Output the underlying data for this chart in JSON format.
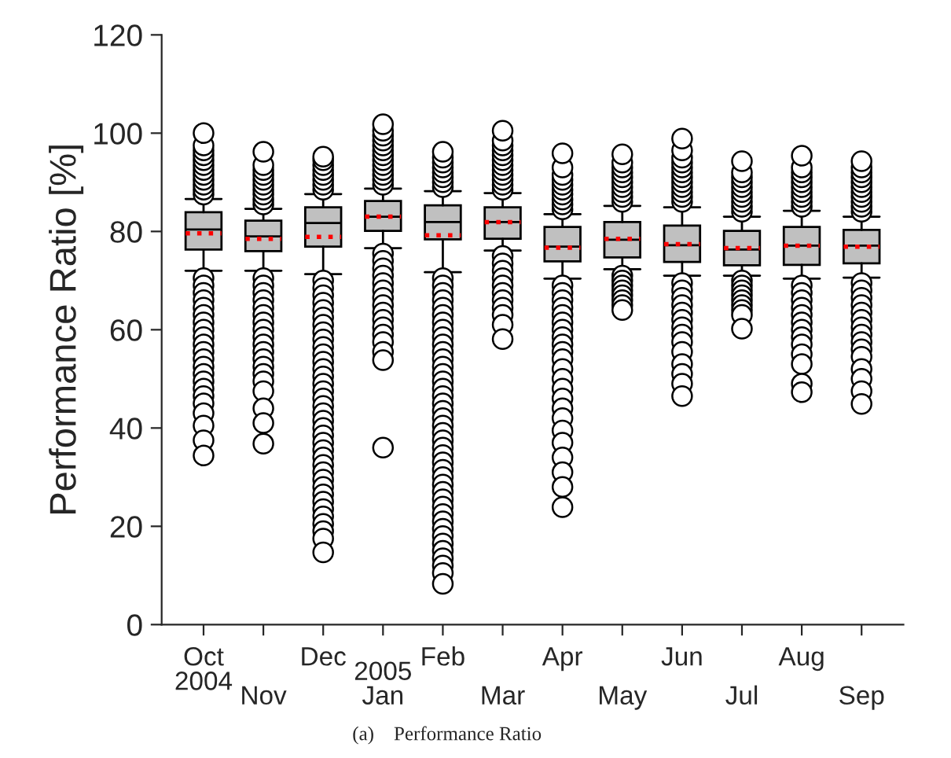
{
  "chart_data": {
    "type": "box",
    "title": "(a)    Performance Ratio",
    "ylabel": "Performance Ratio [%]",
    "categories": [
      "Oct\n2004",
      "Nov",
      "Dec",
      "2005\nJan",
      "Feb",
      "Mar",
      "Apr",
      "May",
      "Jun",
      "Jul",
      "Aug",
      "Sep"
    ],
    "color": "#c0c0c0",
    "ylim": [
      0,
      120
    ],
    "yticks": [
      0,
      20,
      40,
      60,
      80,
      100,
      120
    ],
    "grid": false,
    "legend": false,
    "boxes": [
      {
        "low": 72,
        "q1": 76.3,
        "median": 80.4,
        "q3": 83.9,
        "high": 86.6,
        "mean": 79.6,
        "outliers": [
          87.5,
          88.5,
          89.5,
          90.5,
          91.5,
          92.5,
          93.5,
          94.5,
          95.5,
          96.5,
          97.5,
          100,
          70.5,
          69,
          67.5,
          66,
          64.5,
          63,
          61.5,
          60,
          58.5,
          57,
          55.5,
          54,
          52.5,
          51,
          49.5,
          48,
          46.5,
          45,
          43,
          40.5,
          37.5,
          34.4
        ]
      },
      {
        "low": 72,
        "q1": 76,
        "median": 79,
        "q3": 82.2,
        "high": 84.6,
        "mean": 78.5,
        "outliers": [
          85.5,
          86.5,
          87.5,
          88.5,
          89.5,
          90.5,
          91.5,
          92.5,
          93.5,
          96.2,
          70.5,
          69,
          67.5,
          66,
          64.5,
          63,
          61.5,
          60,
          58.5,
          57,
          55.5,
          54,
          52.5,
          51,
          49.5,
          47.5,
          44,
          41,
          36.8
        ]
      },
      {
        "low": 71.3,
        "q1": 76.9,
        "median": 81.7,
        "q3": 84.9,
        "high": 87.6,
        "mean": 78.9,
        "outliers": [
          88.5,
          89.5,
          90.5,
          91.5,
          92.5,
          93.5,
          94.5,
          95.2,
          70,
          68.5,
          67,
          65.5,
          64,
          62.5,
          61,
          59.5,
          58,
          56.5,
          55,
          53.5,
          52,
          50.5,
          49,
          47.5,
          46,
          44.5,
          43,
          41.5,
          40,
          38.5,
          37,
          35.5,
          34,
          32.5,
          31,
          29.5,
          28,
          26.5,
          25,
          23.5,
          22,
          20.5,
          19,
          17.5,
          14.7
        ]
      },
      {
        "low": 76.6,
        "q1": 80.1,
        "median": 83,
        "q3": 86.2,
        "high": 88.7,
        "mean": 83,
        "outliers": [
          89.5,
          90.5,
          91.5,
          92.5,
          93.5,
          94.5,
          95.5,
          96.5,
          97.5,
          98.5,
          99.5,
          100.5,
          101.8,
          75.5,
          74,
          72.5,
          71,
          69.5,
          68,
          66.5,
          65,
          63.5,
          62,
          60.5,
          59,
          57.5,
          55.5,
          53.8,
          36
        ]
      },
      {
        "low": 71.7,
        "q1": 78.4,
        "median": 81.9,
        "q3": 85.3,
        "high": 88.2,
        "mean": 79.2,
        "outliers": [
          89,
          90,
          91,
          92,
          93,
          94,
          95,
          96.2,
          70.5,
          69,
          67.5,
          66,
          64.5,
          63,
          61.5,
          60,
          58.5,
          57,
          55.5,
          54,
          52.5,
          51,
          49.5,
          48,
          46.5,
          45,
          43.5,
          42,
          40.5,
          39,
          37.5,
          36,
          34.5,
          33,
          31.5,
          30,
          28.5,
          27,
          25.5,
          24,
          22.5,
          21,
          19.5,
          18,
          16.5,
          15,
          13.5,
          12,
          10.5,
          8.3
        ]
      },
      {
        "low": 76.1,
        "q1": 78.5,
        "median": 81.9,
        "q3": 84.9,
        "high": 87.8,
        "mean": 81.9,
        "outliers": [
          88.5,
          89.5,
          90.5,
          91.5,
          92.5,
          93.5,
          94.5,
          95.5,
          96.5,
          97.5,
          98.5,
          100.5,
          75,
          73.5,
          72,
          70.5,
          69,
          67.5,
          66,
          64.5,
          63,
          61,
          58.1
        ]
      },
      {
        "low": 70.4,
        "q1": 73.9,
        "median": 76.9,
        "q3": 80.9,
        "high": 83.5,
        "mean": 76.7,
        "outliers": [
          84.5,
          85.5,
          86.5,
          87.5,
          88.5,
          89.5,
          90.5,
          91.5,
          93,
          95.9,
          69,
          67.5,
          66,
          64.5,
          63,
          61.5,
          60,
          58.5,
          57,
          55.5,
          54,
          52,
          50,
          48,
          46,
          44,
          42,
          39.5,
          37,
          34,
          31,
          28,
          23.9
        ]
      },
      {
        "low": 72.3,
        "q1": 74.7,
        "median": 78.3,
        "q3": 81.9,
        "high": 85.2,
        "mean": 78.5,
        "outliers": [
          86,
          87,
          88,
          89,
          90,
          91,
          92,
          93,
          94,
          95.7,
          71,
          70,
          69,
          68,
          67,
          66,
          65,
          64
        ]
      },
      {
        "low": 71,
        "q1": 73.8,
        "median": 77.2,
        "q3": 81.2,
        "high": 84.9,
        "mean": 77.4,
        "outliers": [
          86,
          87,
          88,
          89,
          90,
          91,
          92,
          93,
          94,
          95,
          96.5,
          98.9,
          69.5,
          68,
          66.5,
          65,
          63.5,
          62,
          60.5,
          59,
          57.5,
          55.5,
          53,
          51,
          49,
          46.5
        ]
      },
      {
        "low": 71,
        "q1": 73.1,
        "median": 76.3,
        "q3": 80.1,
        "high": 83,
        "mean": 76.6,
        "outliers": [
          84,
          85,
          86,
          87,
          88,
          89,
          90,
          91,
          92,
          94.3,
          70,
          69,
          68,
          67,
          66,
          65,
          64,
          63,
          60.2
        ]
      },
      {
        "low": 70.4,
        "q1": 73.2,
        "median": 77.1,
        "q3": 80.9,
        "high": 84.2,
        "mean": 77.1,
        "outliers": [
          85,
          86,
          87,
          88,
          89,
          90,
          91,
          92,
          93,
          95.4,
          69,
          67.5,
          66,
          64.5,
          63,
          61.5,
          60,
          58.5,
          57,
          55,
          53,
          49,
          47.3
        ]
      },
      {
        "low": 70.6,
        "q1": 73.5,
        "median": 77.1,
        "q3": 80.3,
        "high": 83,
        "mean": 76.9,
        "outliers": [
          84,
          85,
          86,
          87,
          88,
          89,
          90,
          91,
          92,
          93,
          94.3,
          69.5,
          68,
          66.5,
          65,
          63.5,
          62,
          60.5,
          59,
          57.5,
          56,
          54.5,
          52,
          50,
          47.5,
          44.9
        ]
      }
    ]
  }
}
